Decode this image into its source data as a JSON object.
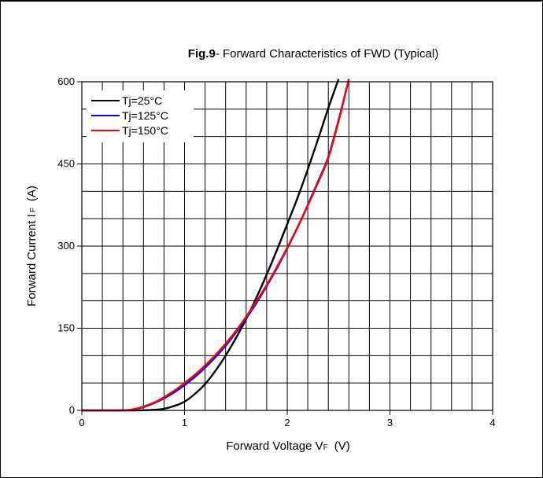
{
  "chart_data": {
    "type": "line",
    "title_bold": "Fig.9",
    "title_rest": "- Forward Characteristics of FWD (Typical)",
    "xlabel": {
      "main": "Forward Voltage V",
      "sub": "F",
      "unit": "(V)"
    },
    "ylabel": {
      "main": "Forward Current I",
      "sub": "F",
      "unit": "(A)"
    },
    "xlim": [
      0,
      4
    ],
    "ylim": [
      0,
      600
    ],
    "x_ticks": [
      0,
      1,
      2,
      3,
      4
    ],
    "y_ticks": [
      0,
      150,
      300,
      450,
      600
    ],
    "x_minor_step": 0.2,
    "y_minor_step": 50,
    "grid": true,
    "legend_position": "top-left",
    "series": [
      {
        "name": "Tj=25°C",
        "color": "#000000",
        "points": [
          [
            0,
            0
          ],
          [
            0.5,
            0
          ],
          [
            0.7,
            1
          ],
          [
            0.8,
            3
          ],
          [
            0.9,
            8
          ],
          [
            1.0,
            16
          ],
          [
            1.1,
            30
          ],
          [
            1.2,
            48
          ],
          [
            1.3,
            72
          ],
          [
            1.4,
            100
          ],
          [
            1.5,
            132
          ],
          [
            1.6,
            167
          ],
          [
            1.7,
            206
          ],
          [
            1.8,
            248
          ],
          [
            1.9,
            293
          ],
          [
            2.0,
            340
          ],
          [
            2.1,
            388
          ],
          [
            2.2,
            440
          ],
          [
            2.3,
            495
          ],
          [
            2.4,
            552
          ],
          [
            2.5,
            605
          ]
        ]
      },
      {
        "name": "Tj=125°C",
        "color": "#0000ff",
        "points": [
          [
            0,
            0
          ],
          [
            0.4,
            0
          ],
          [
            0.5,
            2
          ],
          [
            0.6,
            6
          ],
          [
            0.7,
            13
          ],
          [
            0.8,
            22
          ],
          [
            0.9,
            33
          ],
          [
            1.0,
            46
          ],
          [
            1.1,
            61
          ],
          [
            1.2,
            78
          ],
          [
            1.3,
            97
          ],
          [
            1.4,
            118
          ],
          [
            1.5,
            142
          ],
          [
            1.6,
            168
          ],
          [
            1.7,
            196
          ],
          [
            1.8,
            227
          ],
          [
            1.9,
            260
          ],
          [
            2.0,
            296
          ],
          [
            2.1,
            334
          ],
          [
            2.2,
            375
          ],
          [
            2.3,
            418
          ],
          [
            2.4,
            463
          ],
          [
            2.5,
            530
          ],
          [
            2.6,
            605
          ]
        ]
      },
      {
        "name": "Tj=150°C",
        "color": "#ff0000",
        "points": [
          [
            0,
            0
          ],
          [
            0.4,
            0
          ],
          [
            0.5,
            2
          ],
          [
            0.6,
            7
          ],
          [
            0.7,
            14
          ],
          [
            0.8,
            24
          ],
          [
            0.9,
            36
          ],
          [
            1.0,
            50
          ],
          [
            1.1,
            65
          ],
          [
            1.2,
            82
          ],
          [
            1.3,
            101
          ],
          [
            1.4,
            122
          ],
          [
            1.5,
            145
          ],
          [
            1.6,
            171
          ],
          [
            1.7,
            199
          ],
          [
            1.8,
            229
          ],
          [
            1.9,
            262
          ],
          [
            2.0,
            297
          ],
          [
            2.1,
            334
          ],
          [
            2.2,
            374
          ],
          [
            2.3,
            416
          ],
          [
            2.4,
            461
          ],
          [
            2.5,
            528
          ],
          [
            2.6,
            605
          ]
        ]
      }
    ]
  }
}
